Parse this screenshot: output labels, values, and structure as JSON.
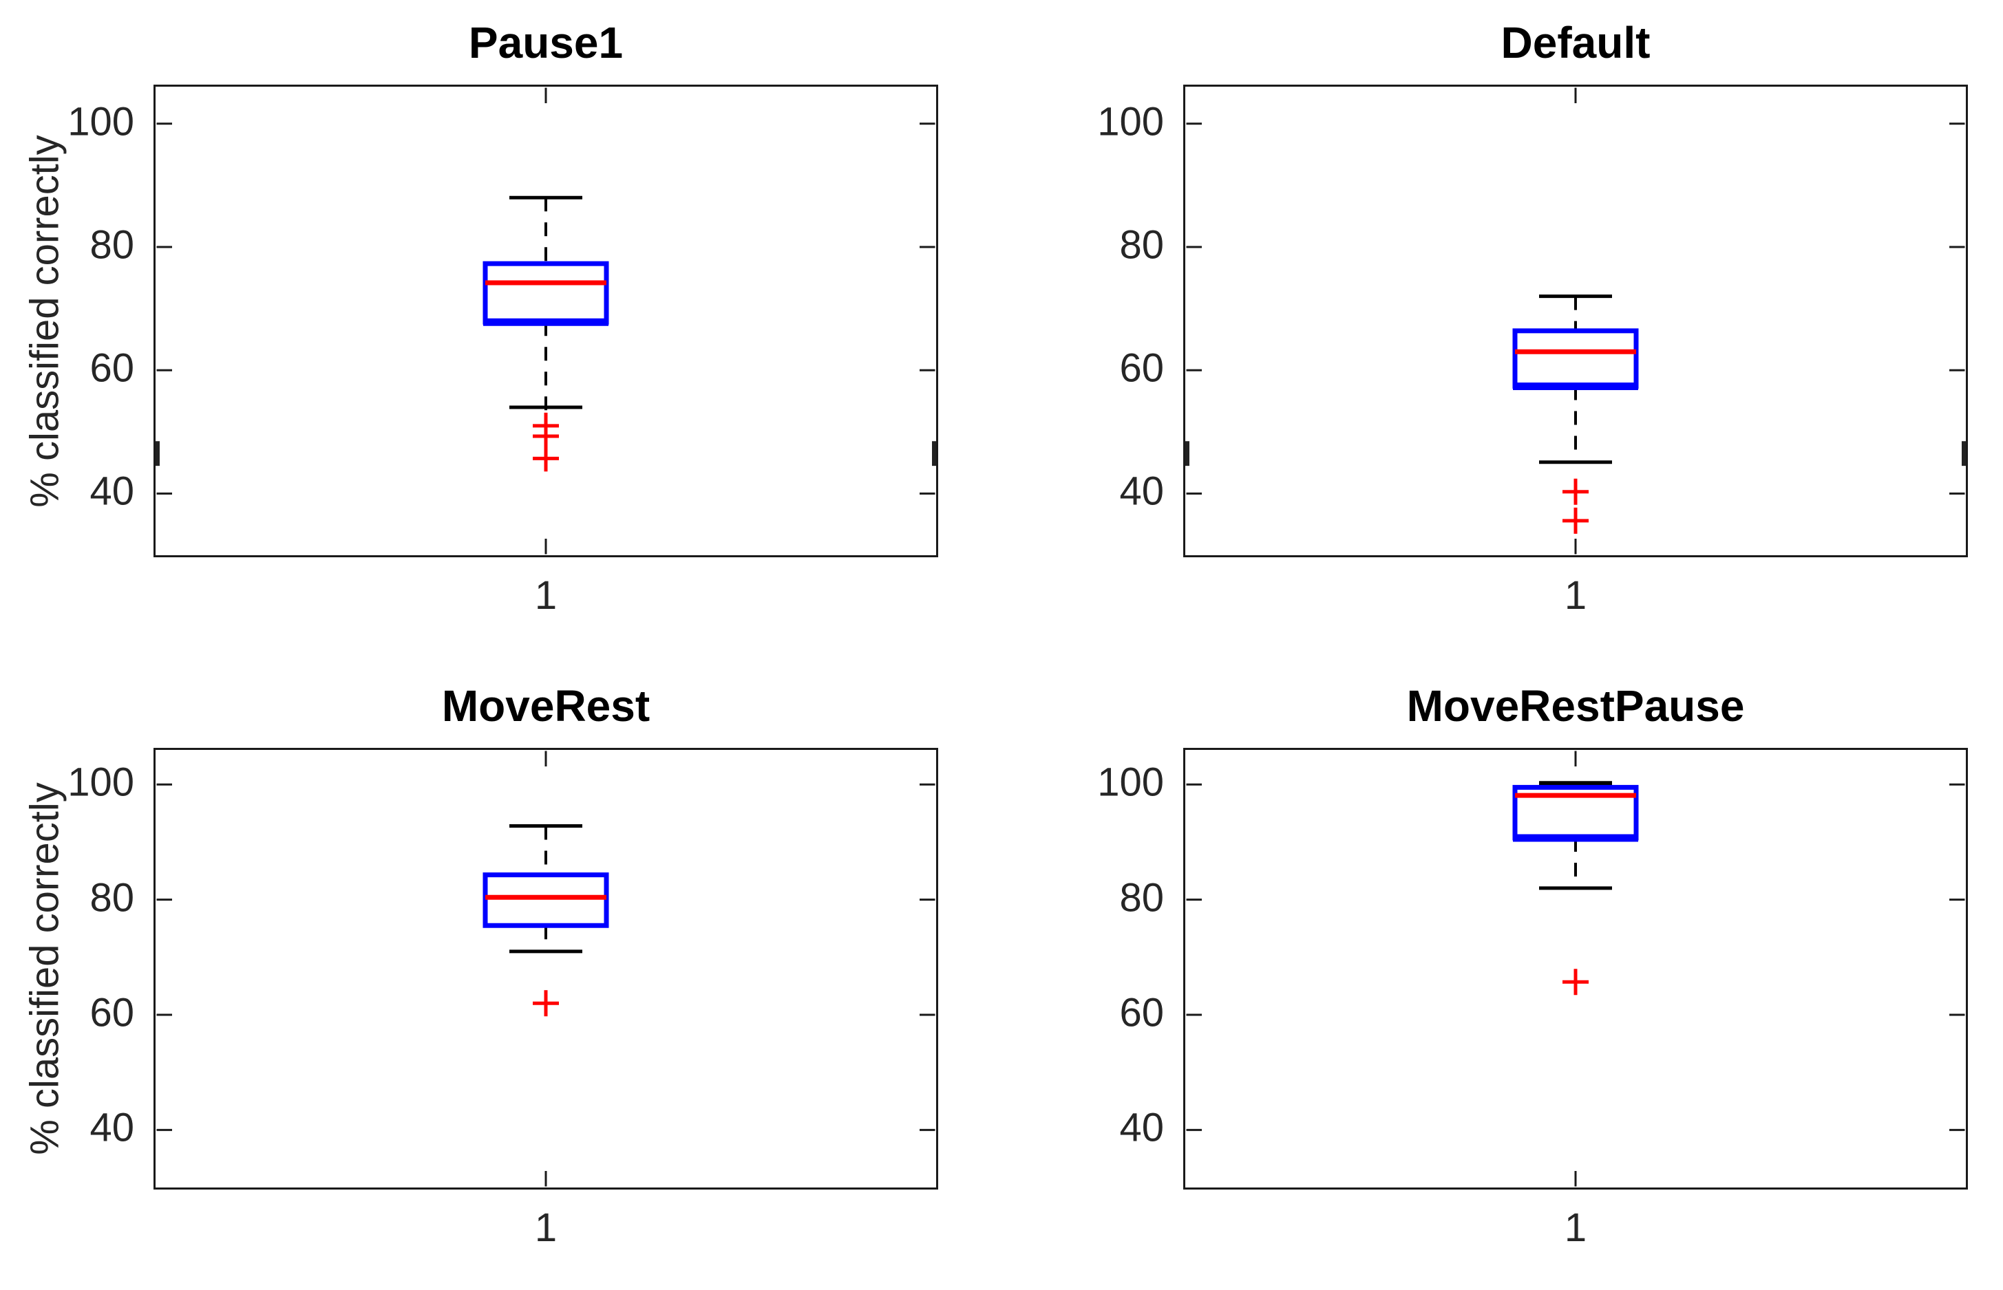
{
  "figure": {
    "background_color": "#ffffff",
    "axis_color": "#1a1a1a",
    "tick_label_color": "#262626",
    "box_color": "#0000ff",
    "median_color": "#ff0000",
    "outlier_color": "#ff0000",
    "whisker_color": "#000000",
    "ylabel": "% classified correctly",
    "xtick_label": "1",
    "yticks": [
      100,
      80,
      60,
      40
    ],
    "ylim": [
      30,
      106
    ],
    "layout": "2x2 grid of boxplots, y tick labels on all plots, rotated y-axis label on left column only"
  },
  "chart_data": [
    {
      "type": "boxplot",
      "title": "Pause1",
      "x": 1,
      "whisker_high": 88,
      "q3": 77.3,
      "median": 74.2,
      "q1": 67.8,
      "whisker_low": 54,
      "outliers": [
        51,
        49.3,
        45.7
      ],
      "lower_whisker_dash_extends_to": 45.3,
      "border_artifact_marks": {
        "values": [
          48.5,
          44.5
        ],
        "sides": [
          "left",
          "right"
        ]
      },
      "ylabel": "% classified correctly",
      "yticks": [
        40,
        60,
        80,
        100
      ],
      "ylim": [
        30,
        106
      ],
      "xtick_labels": [
        "1"
      ]
    },
    {
      "type": "boxplot",
      "title": "Default",
      "x": 1,
      "whisker_high": 72,
      "q3": 66.4,
      "median": 63,
      "q1": 57.4,
      "whisker_low": 45.1,
      "outliers": [
        40.3,
        35.6
      ],
      "border_artifact_marks": {
        "values": [
          48.5,
          44.5
        ],
        "sides": [
          "left",
          "right"
        ]
      },
      "ylabel": "",
      "yticks": [
        40,
        60,
        80,
        100
      ],
      "ylim": [
        30,
        106
      ],
      "xtick_labels": [
        "1"
      ]
    },
    {
      "type": "boxplot",
      "title": "MoveRest",
      "x": 1,
      "whisker_high": 92.8,
      "q3": 84.3,
      "median": 80.4,
      "q1": 75.5,
      "whisker_low": 71,
      "outliers": [
        62
      ],
      "ylabel": "% classified correctly",
      "yticks": [
        40,
        60,
        80,
        100
      ],
      "ylim": [
        30,
        106
      ],
      "xtick_labels": [
        "1"
      ]
    },
    {
      "type": "boxplot",
      "title": "MoveRestPause",
      "x": 1,
      "whisker_high": 100,
      "q3": 99.5,
      "median": 98.1,
      "q1": 90.7,
      "whisker_low": 82,
      "outliers": [
        65.7
      ],
      "thick_upper_cap": true,
      "ylabel": "",
      "yticks": [
        40,
        60,
        80,
        100
      ],
      "ylim": [
        30,
        106
      ],
      "xtick_labels": [
        "1"
      ]
    }
  ]
}
